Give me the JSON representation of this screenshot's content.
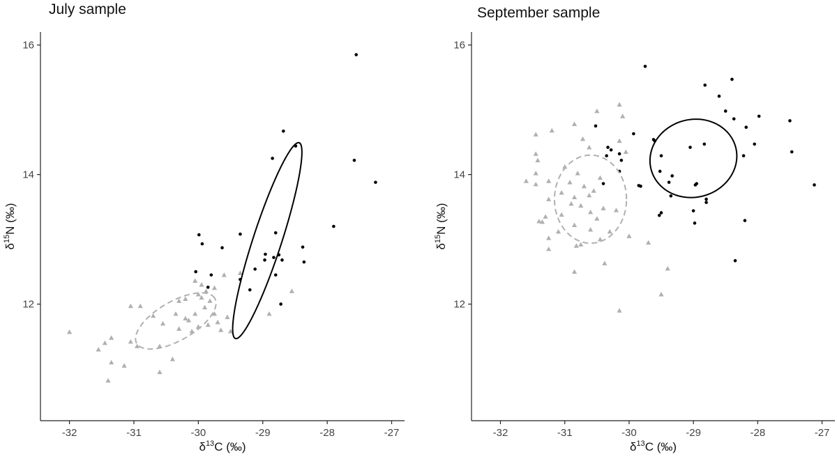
{
  "colors": {
    "group_a": "#000000",
    "group_b": "#b0b0b0",
    "axis": "#222222"
  },
  "chart_data": [
    {
      "type": "scatter",
      "title": "July sample",
      "xlabel": "δ13C (‰)",
      "ylabel": "δ15N (‰)",
      "xlabel_parts": {
        "prefix": "δ",
        "sup": "13",
        "rest": "C (‰)"
      },
      "ylabel_parts": {
        "prefix": "δ",
        "sup": "15",
        "rest": "N (‰)"
      },
      "xlim": [
        -32.45,
        -26.8
      ],
      "ylim": [
        10.2,
        16.2
      ],
      "xticks": [
        -32,
        -31,
        -30,
        -29,
        -28,
        -27
      ],
      "yticks": [
        12,
        14,
        16
      ],
      "grid": false,
      "series": [
        {
          "name": "black circles",
          "marker": "circle",
          "color": "#000000",
          "points": [
            [
              -27.55,
              15.85
            ],
            [
              -28.68,
              14.67
            ],
            [
              -28.49,
              14.44
            ],
            [
              -28.85,
              14.25
            ],
            [
              -27.58,
              14.22
            ],
            [
              -27.25,
              13.88
            ],
            [
              -27.9,
              13.2
            ],
            [
              -29.99,
              13.07
            ],
            [
              -29.35,
              13.08
            ],
            [
              -28.8,
              13.1
            ],
            [
              -29.94,
              12.93
            ],
            [
              -29.63,
              12.87
            ],
            [
              -28.38,
              12.88
            ],
            [
              -28.96,
              12.77
            ],
            [
              -28.75,
              12.76
            ],
            [
              -28.83,
              12.72
            ],
            [
              -28.97,
              12.68
            ],
            [
              -28.7,
              12.68
            ],
            [
              -28.36,
              12.65
            ],
            [
              -29.12,
              12.54
            ],
            [
              -30.04,
              12.5
            ],
            [
              -29.8,
              12.45
            ],
            [
              -28.8,
              12.45
            ],
            [
              -29.35,
              12.38
            ],
            [
              -29.85,
              12.26
            ],
            [
              -29.2,
              12.22
            ],
            [
              -28.72,
              12.0
            ]
          ]
        },
        {
          "name": "grey triangles",
          "marker": "triangle",
          "color": "#b0b0b0",
          "points": [
            [
              -29.35,
              12.48
            ],
            [
              -29.6,
              12.45
            ],
            [
              -30.05,
              12.36
            ],
            [
              -29.95,
              12.3
            ],
            [
              -29.75,
              12.25
            ],
            [
              -29.88,
              12.2
            ],
            [
              -28.55,
              12.2
            ],
            [
              -30.0,
              12.15
            ],
            [
              -29.95,
              12.1
            ],
            [
              -30.2,
              12.08
            ],
            [
              -30.3,
              12.05
            ],
            [
              -29.82,
              12.05
            ],
            [
              -29.9,
              11.95
            ],
            [
              -31.05,
              11.97
            ],
            [
              -30.9,
              11.97
            ],
            [
              -29.75,
              11.85
            ],
            [
              -30.35,
              11.85
            ],
            [
              -30.05,
              11.85
            ],
            [
              -30.7,
              11.82
            ],
            [
              -29.55,
              11.8
            ],
            [
              -28.9,
              11.85
            ],
            [
              -30.2,
              11.78
            ],
            [
              -30.15,
              11.75
            ],
            [
              -29.7,
              11.72
            ],
            [
              -30.55,
              11.7
            ],
            [
              -30.0,
              11.65
            ],
            [
              -29.85,
              11.68
            ],
            [
              -30.3,
              11.62
            ],
            [
              -29.5,
              11.58
            ],
            [
              -29.65,
              11.6
            ],
            [
              -30.1,
              11.58
            ],
            [
              -32.0,
              11.57
            ],
            [
              -31.35,
              11.48
            ],
            [
              -31.45,
              11.4
            ],
            [
              -31.05,
              11.42
            ],
            [
              -30.95,
              11.35
            ],
            [
              -30.6,
              11.35
            ],
            [
              -31.55,
              11.3
            ],
            [
              -30.4,
              11.15
            ],
            [
              -31.35,
              11.1
            ],
            [
              -31.15,
              11.05
            ],
            [
              -30.6,
              10.95
            ],
            [
              -31.4,
              10.82
            ]
          ]
        }
      ],
      "ellipses": [
        {
          "name": "black ellipse",
          "style": "solid",
          "color": "#000000",
          "cx": -28.93,
          "cy": 12.98,
          "rx": 1.6,
          "ry": 0.22,
          "angle_deg": 72
        },
        {
          "name": "grey ellipse",
          "style": "dashed",
          "color": "#b0b0b0",
          "cx": -30.35,
          "cy": 11.74,
          "rx": 0.7,
          "ry": 0.3,
          "angle_deg": 30
        }
      ]
    },
    {
      "type": "scatter",
      "title": "September sample",
      "xlabel": "δ13C (‰)",
      "ylabel": "δ15N (‰)",
      "xlabel_parts": {
        "prefix": "δ",
        "sup": "13",
        "rest": "C (‰)"
      },
      "ylabel_parts": {
        "prefix": "δ",
        "sup": "15",
        "rest": "N (‰)"
      },
      "xlim": [
        -32.45,
        -26.8
      ],
      "ylim": [
        10.2,
        16.2
      ],
      "xticks": [
        -32,
        -31,
        -30,
        -29,
        -28,
        -27
      ],
      "yticks": [
        12,
        14,
        16
      ],
      "grid": false,
      "series": [
        {
          "name": "black circles",
          "marker": "circle",
          "color": "#000000",
          "points": [
            [
              -29.75,
              15.67
            ],
            [
              -28.4,
              15.47
            ],
            [
              -28.82,
              15.38
            ],
            [
              -28.6,
              15.21
            ],
            [
              -28.5,
              14.98
            ],
            [
              -27.98,
              14.9
            ],
            [
              -28.37,
              14.86
            ],
            [
              -27.5,
              14.83
            ],
            [
              -30.52,
              14.75
            ],
            [
              -28.18,
              14.73
            ],
            [
              -29.93,
              14.63
            ],
            [
              -29.62,
              14.54
            ],
            [
              -29.6,
              14.52
            ],
            [
              -28.05,
              14.47
            ],
            [
              -28.83,
              14.47
            ],
            [
              -29.05,
              14.42
            ],
            [
              -30.33,
              14.42
            ],
            [
              -30.28,
              14.38
            ],
            [
              -27.47,
              14.35
            ],
            [
              -30.15,
              14.32
            ],
            [
              -29.5,
              14.29
            ],
            [
              -30.35,
              14.29
            ],
            [
              -28.22,
              14.29
            ],
            [
              -30.12,
              14.22
            ],
            [
              -30.15,
              14.05
            ],
            [
              -29.52,
              14.05
            ],
            [
              -29.33,
              13.98
            ],
            [
              -29.38,
              13.88
            ],
            [
              -30.4,
              13.86
            ],
            [
              -28.95,
              13.86
            ],
            [
              -28.97,
              13.84
            ],
            [
              -29.85,
              13.83
            ],
            [
              -29.82,
              13.82
            ],
            [
              -27.12,
              13.84
            ],
            [
              -29.35,
              13.67
            ],
            [
              -28.8,
              13.62
            ],
            [
              -28.8,
              13.57
            ],
            [
              -29.5,
              13.41
            ],
            [
              -29.53,
              13.37
            ],
            [
              -29.0,
              13.44
            ],
            [
              -28.2,
              13.29
            ],
            [
              -28.98,
              13.25
            ],
            [
              -28.35,
              12.67
            ]
          ]
        },
        {
          "name": "grey triangles",
          "marker": "triangle",
          "color": "#b0b0b0",
          "points": [
            [
              -30.15,
              15.08
            ],
            [
              -30.5,
              14.98
            ],
            [
              -30.1,
              14.9
            ],
            [
              -31.45,
              14.62
            ],
            [
              -30.85,
              14.78
            ],
            [
              -31.2,
              14.68
            ],
            [
              -30.72,
              14.55
            ],
            [
              -30.62,
              14.42
            ],
            [
              -30.15,
              14.52
            ],
            [
              -31.45,
              14.32
            ],
            [
              -31.42,
              14.22
            ],
            [
              -30.05,
              14.35
            ],
            [
              -31.0,
              14.12
            ],
            [
              -31.45,
              14.02
            ],
            [
              -30.8,
              14.02
            ],
            [
              -30.45,
              13.95
            ],
            [
              -31.6,
              13.9
            ],
            [
              -31.25,
              13.9
            ],
            [
              -31.45,
              13.85
            ],
            [
              -30.92,
              13.88
            ],
            [
              -30.7,
              13.82
            ],
            [
              -30.55,
              13.75
            ],
            [
              -31.05,
              13.72
            ],
            [
              -30.62,
              13.68
            ],
            [
              -31.25,
              13.62
            ],
            [
              -30.85,
              13.65
            ],
            [
              -30.9,
              13.55
            ],
            [
              -30.75,
              13.52
            ],
            [
              -30.4,
              13.48
            ],
            [
              -30.2,
              13.45
            ],
            [
              -30.6,
              13.42
            ],
            [
              -31.05,
              13.38
            ],
            [
              -31.3,
              13.35
            ],
            [
              -30.5,
              13.32
            ],
            [
              -31.4,
              13.28
            ],
            [
              -31.35,
              13.27
            ],
            [
              -30.85,
              13.22
            ],
            [
              -30.6,
              13.15
            ],
            [
              -31.1,
              13.12
            ],
            [
              -30.3,
              13.12
            ],
            [
              -30.0,
              13.05
            ],
            [
              -31.25,
              13.02
            ],
            [
              -30.45,
              13.0
            ],
            [
              -29.7,
              12.95
            ],
            [
              -30.75,
              12.92
            ],
            [
              -31.25,
              12.85
            ],
            [
              -30.82,
              12.9
            ],
            [
              -30.38,
              12.63
            ],
            [
              -29.4,
              12.55
            ],
            [
              -30.85,
              12.5
            ],
            [
              -29.5,
              12.15
            ],
            [
              -30.15,
              11.9
            ]
          ]
        }
      ],
      "ellipses": [
        {
          "name": "black ellipse",
          "style": "solid",
          "color": "#000000",
          "cx": -29.0,
          "cy": 14.25,
          "rx": 0.68,
          "ry": 0.6,
          "angle_deg": 15
        },
        {
          "name": "grey ellipse",
          "style": "dashed",
          "color": "#b0b0b0",
          "cx": -30.6,
          "cy": 13.62,
          "rx": 0.56,
          "ry": 0.68,
          "angle_deg": 0
        }
      ]
    }
  ]
}
